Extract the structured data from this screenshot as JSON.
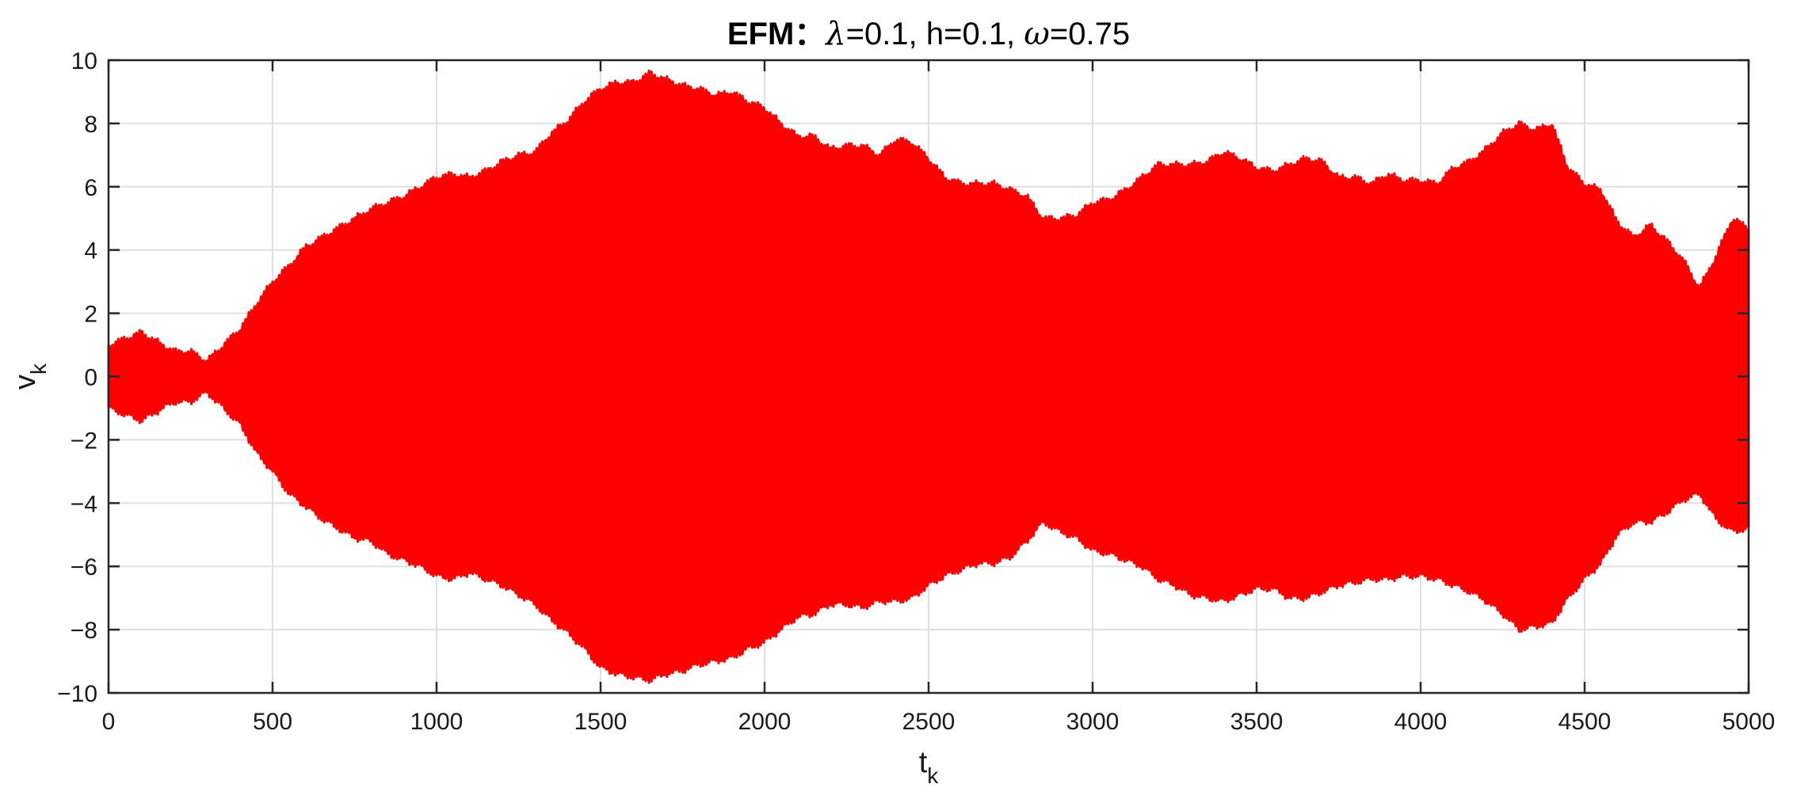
{
  "chart_data": {
    "type": "area",
    "title": {
      "bold": "EFM：",
      "parts": [
        {
          "sym": "λ",
          "eq": "=0.1, h=0.1, "
        },
        {
          "sym": "ω",
          "eq": "=0.75"
        }
      ]
    },
    "xlabel": {
      "base": "t",
      "sub": "k"
    },
    "ylabel": {
      "base": "v",
      "sub": "k"
    },
    "xlim": [
      0,
      5000
    ],
    "ylim": [
      -10,
      10
    ],
    "xticks": [
      0,
      500,
      1000,
      1500,
      2000,
      2500,
      3000,
      3500,
      4000,
      4500,
      5000
    ],
    "yticks": [
      -10,
      -8,
      -6,
      -4,
      -2,
      0,
      2,
      4,
      6,
      8,
      10
    ],
    "ytick_labels": [
      "−10",
      "−8",
      "−6",
      "−4",
      "−2",
      "0",
      "2",
      "4",
      "6",
      "8",
      "10"
    ],
    "grid": true,
    "series": [
      {
        "color": "#ff0000",
        "description": "oscillation envelope",
        "t": [
          0,
          50,
          100,
          150,
          200,
          250,
          300,
          350,
          400,
          450,
          500,
          550,
          600,
          650,
          700,
          750,
          800,
          850,
          900,
          950,
          1000,
          1050,
          1100,
          1150,
          1200,
          1250,
          1300,
          1350,
          1400,
          1450,
          1500,
          1550,
          1600,
          1650,
          1700,
          1750,
          1800,
          1850,
          1900,
          1950,
          2000,
          2050,
          2100,
          2150,
          2200,
          2250,
          2300,
          2350,
          2400,
          2450,
          2500,
          2550,
          2600,
          2650,
          2700,
          2750,
          2800,
          2850,
          2900,
          2950,
          3000,
          3050,
          3100,
          3150,
          3200,
          3250,
          3300,
          3350,
          3400,
          3450,
          3500,
          3550,
          3600,
          3650,
          3700,
          3750,
          3800,
          3850,
          3900,
          3950,
          4000,
          4050,
          4100,
          4150,
          4200,
          4250,
          4300,
          4350,
          4400,
          4450,
          4500,
          4550,
          4600,
          4650,
          4700,
          4750,
          4800,
          4850,
          4900,
          4950,
          5000
        ],
        "upper": [
          0.9,
          1.1,
          1.3,
          1.0,
          0.7,
          0.7,
          0.4,
          0.9,
          1.4,
          2.2,
          2.9,
          3.4,
          4.0,
          4.3,
          4.6,
          4.9,
          5.2,
          5.4,
          5.6,
          5.9,
          6.2,
          6.3,
          6.2,
          6.4,
          6.7,
          6.9,
          7.0,
          7.6,
          8.0,
          8.6,
          9.0,
          9.2,
          9.2,
          9.5,
          9.3,
          9.1,
          9.0,
          8.8,
          8.9,
          8.6,
          8.4,
          7.9,
          7.5,
          7.5,
          7.1,
          7.2,
          7.2,
          6.9,
          7.4,
          7.3,
          6.8,
          6.2,
          6.0,
          6.0,
          6.0,
          5.8,
          5.6,
          4.9,
          4.9,
          5.0,
          5.4,
          5.5,
          5.8,
          6.2,
          6.6,
          6.6,
          6.6,
          6.7,
          7.0,
          6.8,
          6.5,
          6.4,
          6.6,
          6.8,
          6.7,
          6.2,
          6.2,
          6.0,
          6.3,
          6.1,
          6.1,
          6.0,
          6.5,
          6.7,
          7.1,
          7.6,
          7.9,
          7.7,
          7.9,
          6.5,
          6.0,
          5.8,
          4.8,
          4.3,
          4.7,
          4.2,
          3.6,
          2.7,
          3.7,
          4.9,
          4.6
        ],
        "lower": [
          -0.9,
          -1.1,
          -1.3,
          -1.0,
          -0.7,
          -0.7,
          -0.4,
          -0.9,
          -1.4,
          -2.3,
          -2.9,
          -3.6,
          -4.0,
          -4.4,
          -4.7,
          -5.0,
          -5.1,
          -5.5,
          -5.7,
          -5.9,
          -6.2,
          -6.3,
          -6.1,
          -6.3,
          -6.5,
          -6.8,
          -7.1,
          -7.6,
          -8.0,
          -8.5,
          -9.1,
          -9.3,
          -9.4,
          -9.5,
          -9.3,
          -9.2,
          -9.0,
          -8.9,
          -8.8,
          -8.5,
          -8.3,
          -7.9,
          -7.5,
          -7.4,
          -7.1,
          -7.1,
          -7.2,
          -7.0,
          -7.0,
          -6.9,
          -6.5,
          -6.2,
          -6.0,
          -5.8,
          -5.8,
          -5.6,
          -5.1,
          -4.5,
          -4.8,
          -5.0,
          -5.4,
          -5.5,
          -5.7,
          -5.9,
          -6.3,
          -6.5,
          -6.8,
          -6.9,
          -7.0,
          -6.8,
          -6.6,
          -6.6,
          -6.9,
          -6.9,
          -6.7,
          -6.5,
          -6.4,
          -6.3,
          -6.3,
          -6.2,
          -6.2,
          -6.3,
          -6.5,
          -6.7,
          -7.0,
          -7.4,
          -7.9,
          -7.8,
          -7.7,
          -6.9,
          -6.3,
          -5.8,
          -4.9,
          -4.5,
          -4.5,
          -4.2,
          -3.8,
          -3.6,
          -4.4,
          -4.8,
          -4.7
        ]
      }
    ]
  }
}
